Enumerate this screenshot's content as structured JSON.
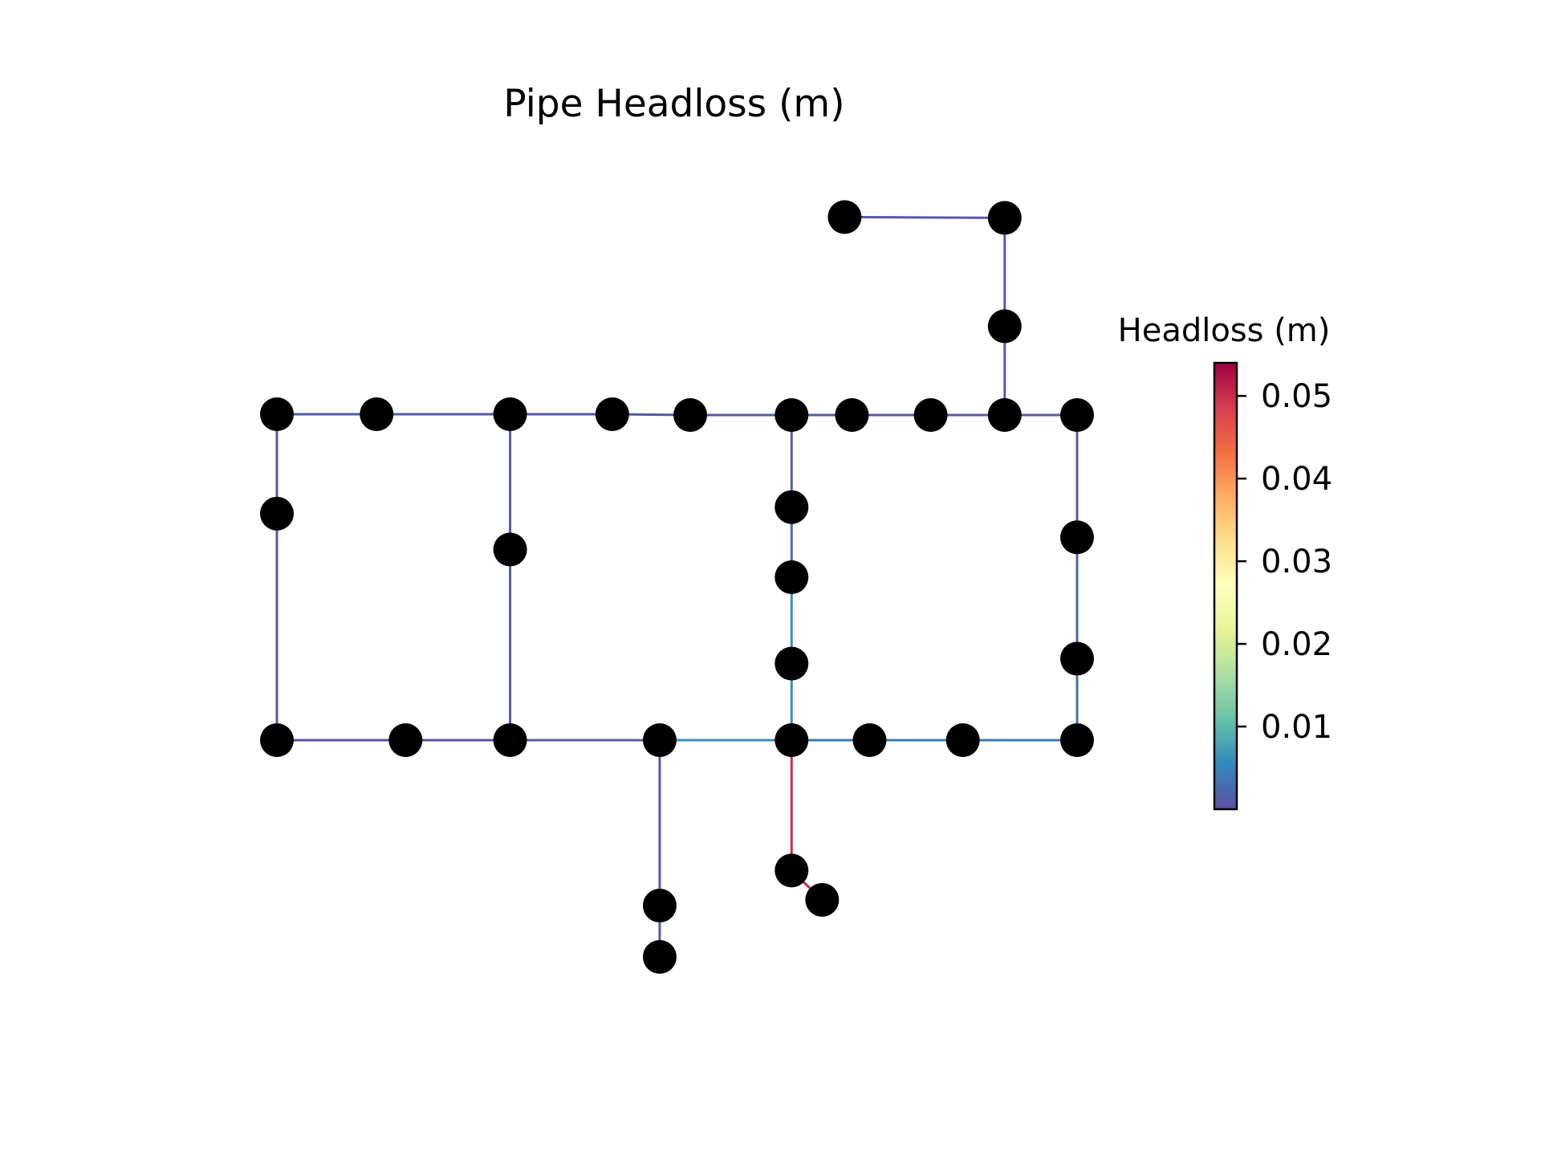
{
  "title": "Pipe Headloss (m)",
  "colorbar": {
    "label": "Headloss (m)",
    "min": 0.0,
    "max": 0.054,
    "ticks": [
      0.01,
      0.02,
      0.03,
      0.04,
      0.05
    ],
    "tick_labels": [
      "0.01",
      "0.02",
      "0.03",
      "0.04",
      "0.05"
    ],
    "colormap": "Spectral_r",
    "stops": [
      "#5e4fa2",
      "#3288bd",
      "#66c2a5",
      "#abdda4",
      "#e6f598",
      "#ffffbf",
      "#fee08b",
      "#fdae61",
      "#f46d43",
      "#d53e4f",
      "#9e0142"
    ]
  },
  "node_color": "#000000",
  "network": {
    "nodes": [
      {
        "id": "A1",
        "x": 0.0,
        "y": 4.0
      },
      {
        "id": "A2",
        "x": 1.24,
        "y": 4.0
      },
      {
        "id": "A3",
        "x": 2.9,
        "y": 4.0
      },
      {
        "id": "A4",
        "x": 4.17,
        "y": 4.0
      },
      {
        "id": "A5",
        "x": 5.14,
        "y": 3.99
      },
      {
        "id": "A6",
        "x": 6.4,
        "y": 3.99
      },
      {
        "id": "A7",
        "x": 7.15,
        "y": 3.99
      },
      {
        "id": "A8",
        "x": 8.13,
        "y": 3.99
      },
      {
        "id": "A9",
        "x": 9.05,
        "y": 3.99
      },
      {
        "id": "A10",
        "x": 9.95,
        "y": 3.99
      },
      {
        "id": "B1",
        "x": 0.0,
        "y": 2.78
      },
      {
        "id": "B2",
        "x": 2.9,
        "y": 2.34
      },
      {
        "id": "C1",
        "x": 6.4,
        "y": 2.86
      },
      {
        "id": "C2",
        "x": 6.4,
        "y": 2.0
      },
      {
        "id": "C3",
        "x": 6.4,
        "y": 0.94
      },
      {
        "id": "E1",
        "x": 9.95,
        "y": 2.49
      },
      {
        "id": "E2",
        "x": 9.95,
        "y": 1.0
      },
      {
        "id": "D1",
        "x": 0.0,
        "y": 0.0
      },
      {
        "id": "D2",
        "x": 1.6,
        "y": 0.0
      },
      {
        "id": "D3",
        "x": 2.9,
        "y": 0.0
      },
      {
        "id": "D4",
        "x": 4.76,
        "y": 0.0
      },
      {
        "id": "D5",
        "x": 6.4,
        "y": 0.0
      },
      {
        "id": "D6",
        "x": 7.37,
        "y": 0.0
      },
      {
        "id": "D7",
        "x": 8.53,
        "y": 0.0
      },
      {
        "id": "D8",
        "x": 9.95,
        "y": 0.0
      },
      {
        "id": "F1",
        "x": 7.06,
        "y": 6.42
      },
      {
        "id": "F2",
        "x": 9.05,
        "y": 6.41
      },
      {
        "id": "F3",
        "x": 9.05,
        "y": 5.08
      },
      {
        "id": "G1",
        "x": 4.76,
        "y": -2.03
      },
      {
        "id": "G2",
        "x": 4.76,
        "y": -2.66
      },
      {
        "id": "H1",
        "x": 6.4,
        "y": -1.6
      },
      {
        "id": "H2",
        "x": 6.78,
        "y": -1.96
      }
    ],
    "links": [
      {
        "from": "A1",
        "to": "A2",
        "headloss": 0.001
      },
      {
        "from": "A2",
        "to": "A3",
        "headloss": 0.001
      },
      {
        "from": "A3",
        "to": "A4",
        "headloss": 0.001
      },
      {
        "from": "A4",
        "to": "A5",
        "headloss": 0.001
      },
      {
        "from": "A5",
        "to": "A6",
        "headloss": 0.001
      },
      {
        "from": "A6",
        "to": "A7",
        "headloss": 0.001
      },
      {
        "from": "A7",
        "to": "A8",
        "headloss": 0.001
      },
      {
        "from": "A8",
        "to": "A9",
        "headloss": 0.001
      },
      {
        "from": "A9",
        "to": "A10",
        "headloss": 0.001
      },
      {
        "from": "A1",
        "to": "B1",
        "headloss": 0.001
      },
      {
        "from": "B1",
        "to": "D1",
        "headloss": 0.001
      },
      {
        "from": "A3",
        "to": "B2",
        "headloss": 0.001
      },
      {
        "from": "B2",
        "to": "D3",
        "headloss": 0.001
      },
      {
        "from": "A6",
        "to": "C1",
        "headloss": 0.002
      },
      {
        "from": "C1",
        "to": "C2",
        "headloss": 0.003
      },
      {
        "from": "C2",
        "to": "C3",
        "headloss": 0.006
      },
      {
        "from": "C3",
        "to": "D5",
        "headloss": 0.006
      },
      {
        "from": "A10",
        "to": "E1",
        "headloss": 0.001
      },
      {
        "from": "E1",
        "to": "E2",
        "headloss": 0.002
      },
      {
        "from": "E2",
        "to": "D8",
        "headloss": 0.003
      },
      {
        "from": "D1",
        "to": "D2",
        "headloss": 0.0
      },
      {
        "from": "D2",
        "to": "D3",
        "headloss": 0.0
      },
      {
        "from": "D3",
        "to": "D4",
        "headloss": 0.001
      },
      {
        "from": "D4",
        "to": "D5",
        "headloss": 0.006
      },
      {
        "from": "D5",
        "to": "D6",
        "headloss": 0.004
      },
      {
        "from": "D6",
        "to": "D7",
        "headloss": 0.004
      },
      {
        "from": "D7",
        "to": "D8",
        "headloss": 0.004
      },
      {
        "from": "F1",
        "to": "F2",
        "headloss": 0.001
      },
      {
        "from": "F2",
        "to": "F3",
        "headloss": 0.001
      },
      {
        "from": "F3",
        "to": "A9",
        "headloss": 0.001
      },
      {
        "from": "D4",
        "to": "G1",
        "headloss": 0.001
      },
      {
        "from": "G1",
        "to": "G2",
        "headloss": 0.001
      },
      {
        "from": "D5",
        "to": "H1",
        "headloss": 0.05
      },
      {
        "from": "H1",
        "to": "H2",
        "headloss": 0.05
      }
    ]
  }
}
